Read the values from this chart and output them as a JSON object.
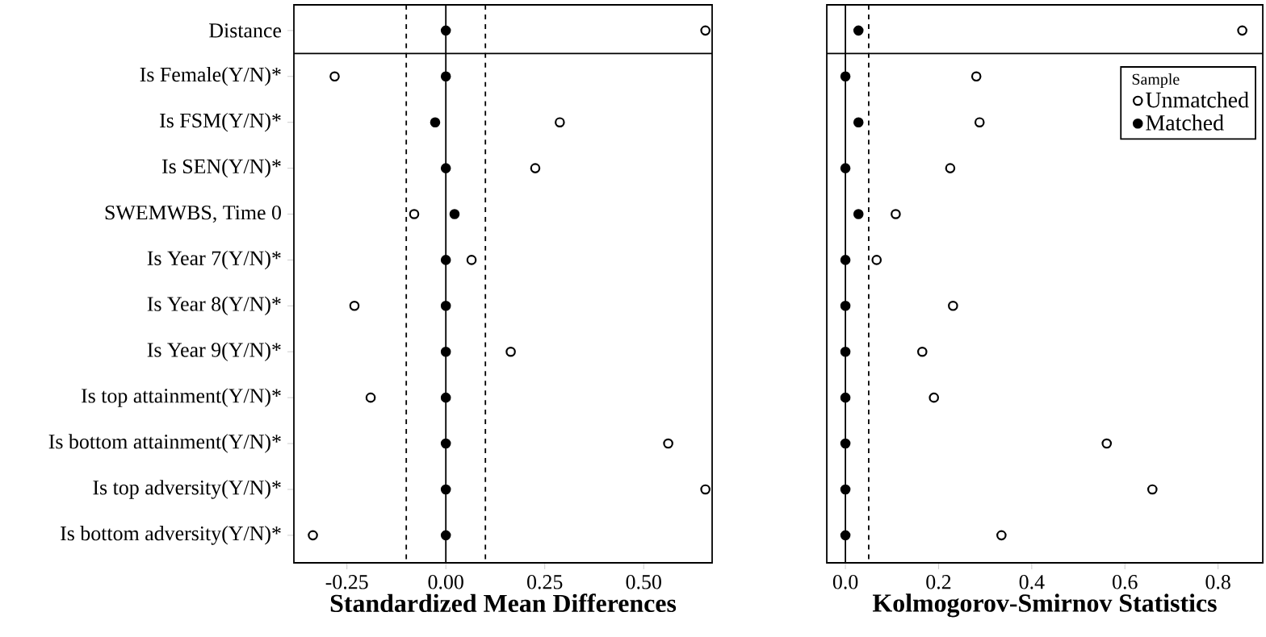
{
  "chart_data": [
    {
      "type": "scatter",
      "orientation": "horizontal",
      "xlabel": "Standardized Mean Differences",
      "categories": [
        "Distance",
        "Is Female(Y/N)*",
        "Is FSM(Y/N)*",
        "Is SEN(Y/N)*",
        "SWEMWBS, Time 0",
        "Is Year 7(Y/N)*",
        "Is Year 8(Y/N)*",
        "Is Year 9(Y/N)*",
        "Is top attainment(Y/N)*",
        "Is bottom attainment(Y/N)*",
        "Is top adversity(Y/N)*",
        "Is bottom adversity(Y/N)*"
      ],
      "series": [
        {
          "color": "#ffffff",
          "values": [
            0.656,
            -0.281,
            0.288,
            0.226,
            -0.08,
            0.065,
            -0.231,
            0.164,
            -0.19,
            0.562,
            0.656,
            -0.336
          ]
        },
        {
          "color": "#000000",
          "values": [
            0,
            0,
            -0.027,
            0,
            0.022,
            0,
            0,
            0,
            0,
            0,
            0,
            0
          ]
        }
      ],
      "xlim": [
        -0.384,
        0.673
      ],
      "xticks": [
        {
          "value": -0.25,
          "label": "-0.25"
        },
        {
          "value": 0,
          "label": "0.00"
        },
        {
          "value": 0.25,
          "label": "0.25"
        },
        {
          "value": 0.5,
          "label": "0.50"
        }
      ],
      "ref_lines": [
        {
          "axis": "x",
          "value": 0,
          "line_style": "solid"
        },
        {
          "axis": "x",
          "value": -0.1,
          "line_style": "dashed"
        },
        {
          "axis": "x",
          "value": 0.1,
          "line_style": "dashed"
        }
      ]
    },
    {
      "type": "scatter",
      "orientation": "horizontal",
      "xlabel": "Kolmogorov-Smirnov Statistics",
      "categories": [
        null,
        null,
        null,
        null,
        null,
        null,
        null,
        null,
        null,
        null,
        null,
        null
      ],
      "series": [
        {
          "name": "Unmatched",
          "color": "#ffffff",
          "values": [
            0.852,
            0.281,
            0.288,
            0.225,
            0.108,
            0.067,
            0.231,
            0.165,
            0.19,
            0.561,
            0.659,
            0.335
          ]
        },
        {
          "name": "Matched",
          "color": "#000000",
          "values": [
            0.028,
            0,
            0.028,
            0,
            0.028,
            0,
            0,
            0,
            0,
            0,
            0,
            0
          ]
        }
      ],
      "tick_labels": "x",
      "legend": "top right",
      "legend_title": "Sample",
      "xlim": [
        -0.04,
        0.896
      ],
      "xticks": [
        {
          "value": 0,
          "label": "0.0"
        },
        {
          "value": 0.2,
          "label": "0.2"
        },
        {
          "value": 0.4,
          "label": "0.4"
        },
        {
          "value": 0.6,
          "label": "0.6"
        },
        {
          "value": 0.8,
          "label": "0.8"
        }
      ],
      "ref_lines": [
        {
          "axis": "x",
          "value": 0,
          "line_style": "solid"
        },
        {
          "axis": "x",
          "value": 0.05,
          "line_style": "dashed"
        }
      ]
    }
  ]
}
